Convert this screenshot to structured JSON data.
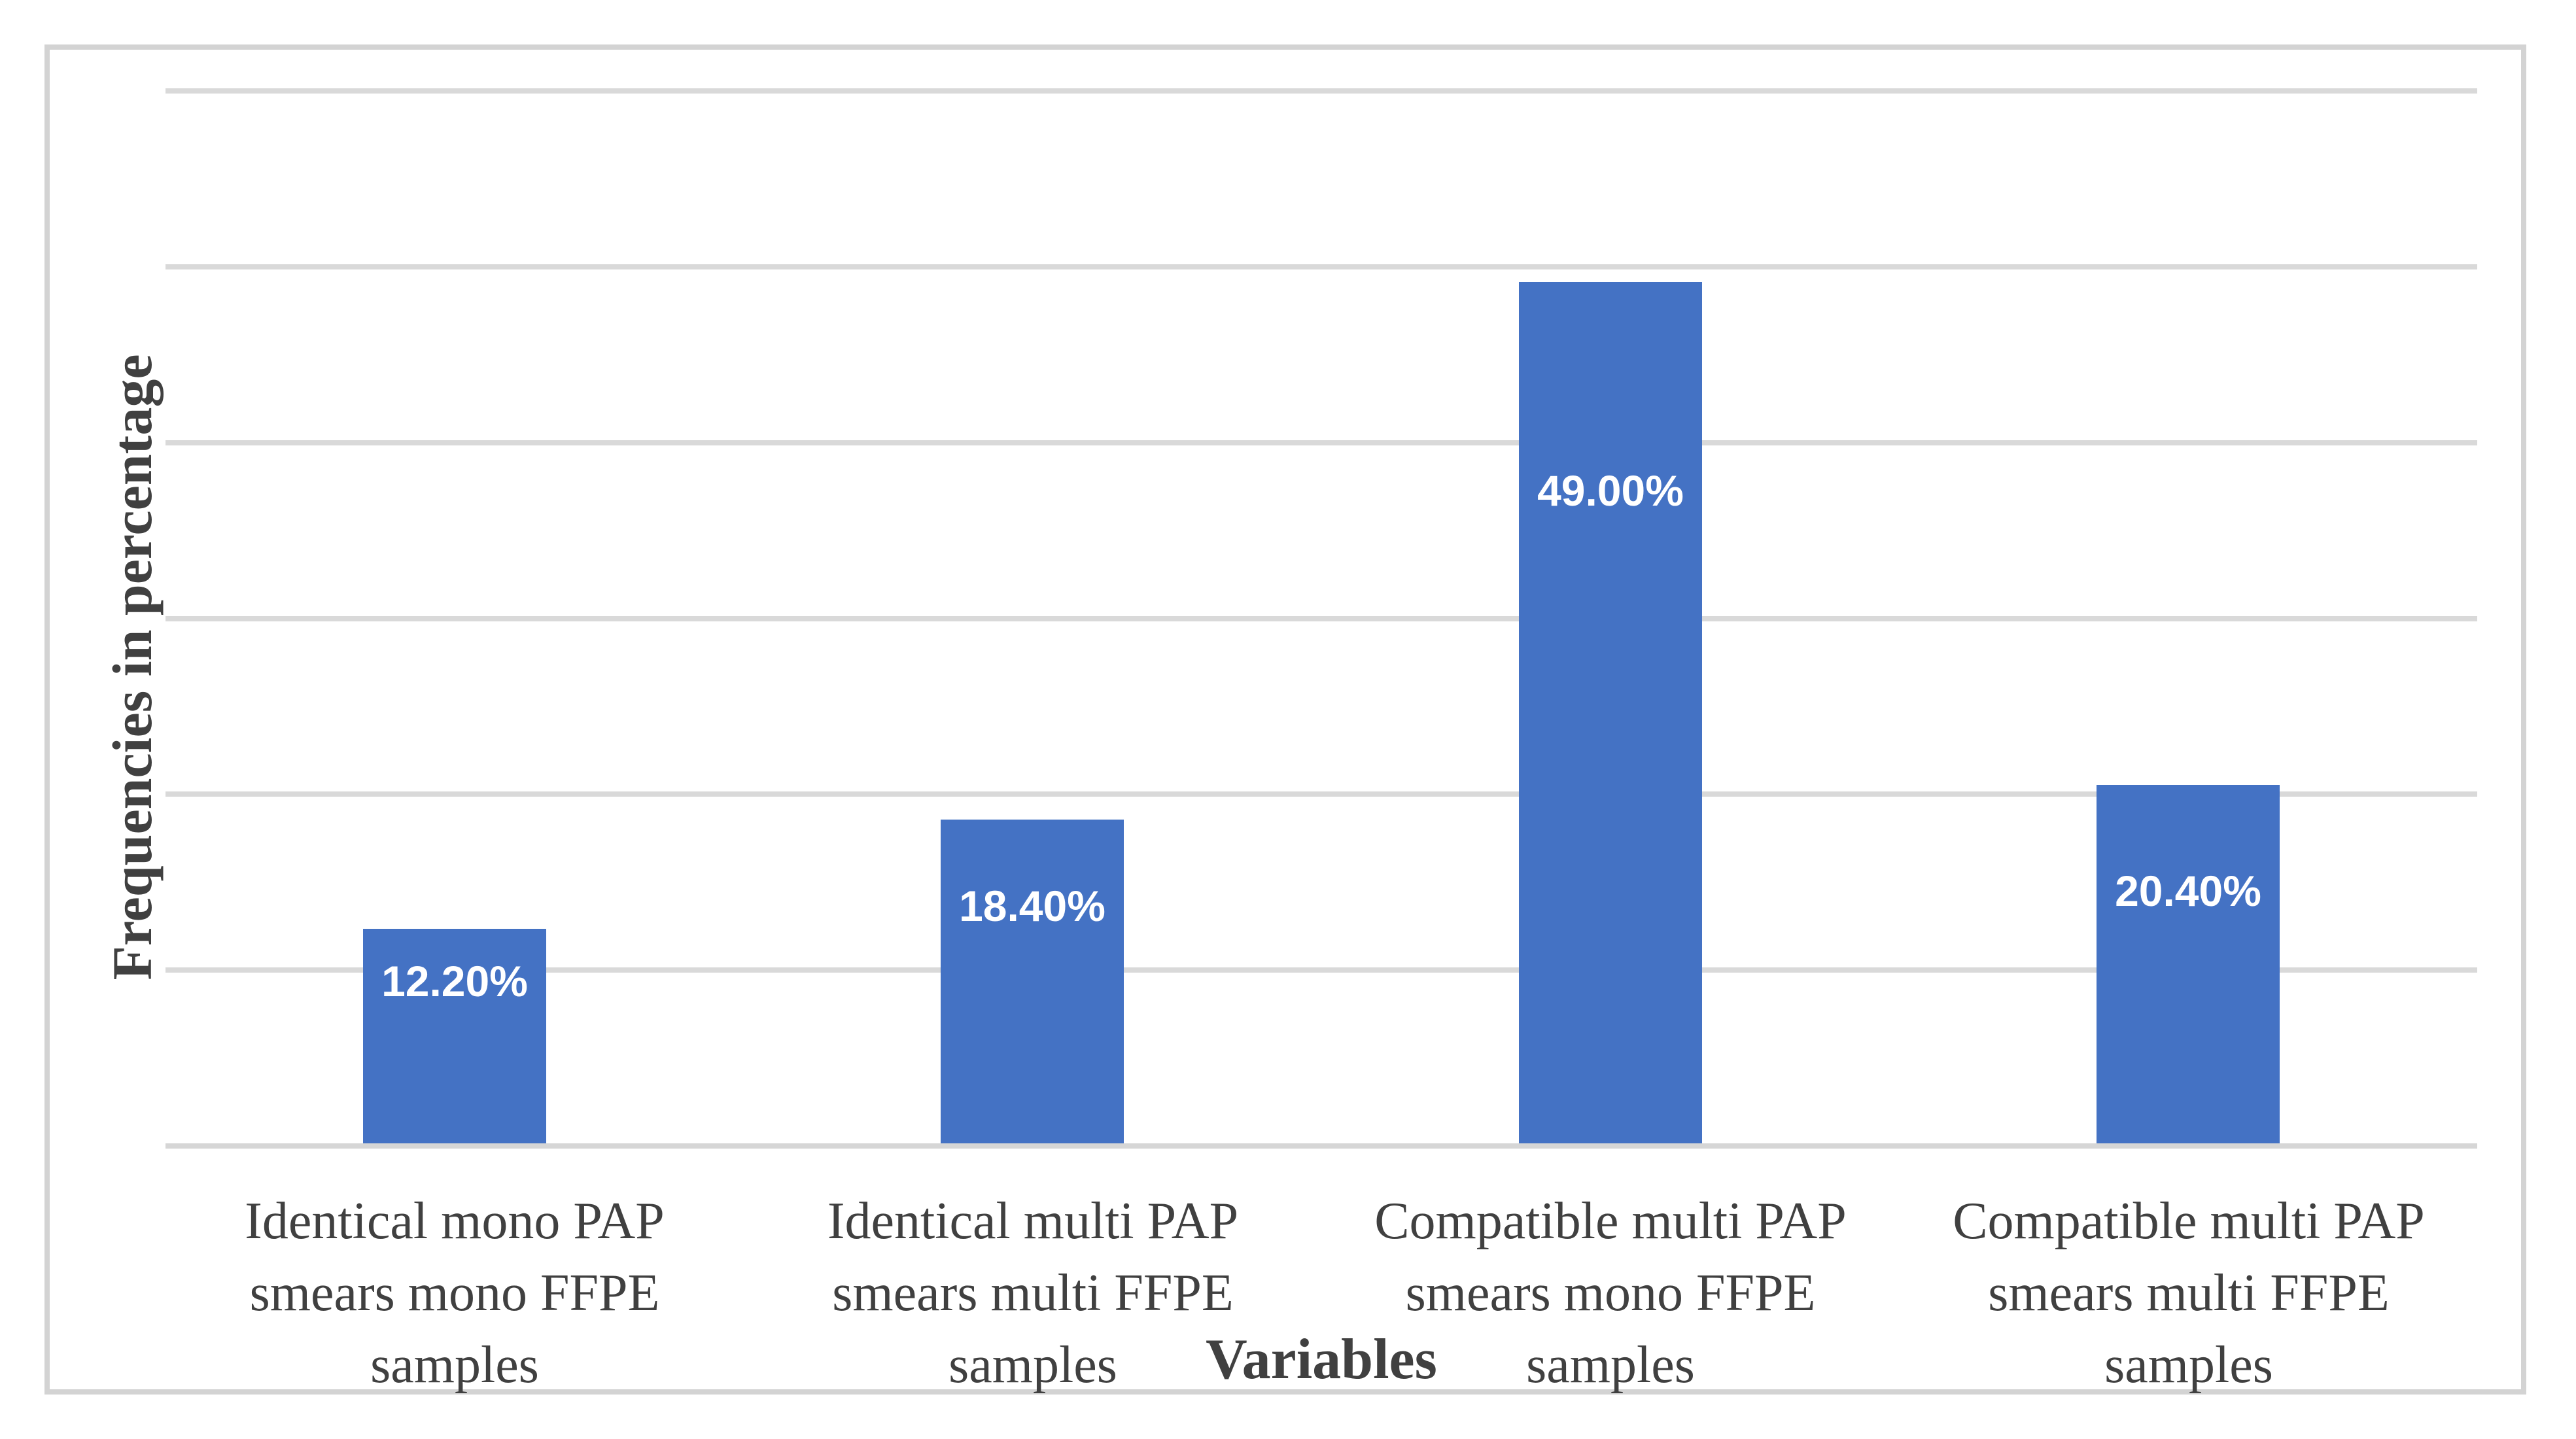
{
  "figure": {
    "background": "#ffffff",
    "border_color": "#d3d3d3"
  },
  "chart_data": {
    "type": "bar",
    "title": "",
    "xlabel": "Variables",
    "ylabel": "Frequencies in percentage",
    "categories": [
      "Identical mono PAP smears mono FFPE samples",
      "Identical multi PAP smears multi FFPE samples",
      "Compatible multi PAP smears mono FFPE samples",
      "Compatible multi PAP smears multi FFPE samples"
    ],
    "categories_lines": [
      [
        "Identical mono PAP",
        "smears mono FFPE",
        "samples"
      ],
      [
        "Identical multi PAP",
        "smears multi FFPE",
        "samples"
      ],
      [
        "Compatible multi PAP",
        "smears mono FFPE",
        "samples"
      ],
      [
        "Compatible multi PAP",
        "smears multi FFPE",
        "samples"
      ]
    ],
    "values": [
      12.2,
      18.4,
      49.0,
      20.4
    ],
    "data_labels": [
      "12.20%",
      "18.40%",
      "49.00%",
      "20.40%"
    ],
    "ylim": [
      0,
      60
    ],
    "gridline_interval": 10,
    "y_tick_labels_visible": false,
    "grid": true,
    "legend_position": "none",
    "bar_color": "#4472c4",
    "data_label_color": "#ffffff",
    "gridline_color": "#d9d9d9",
    "text_color": "#404040"
  }
}
